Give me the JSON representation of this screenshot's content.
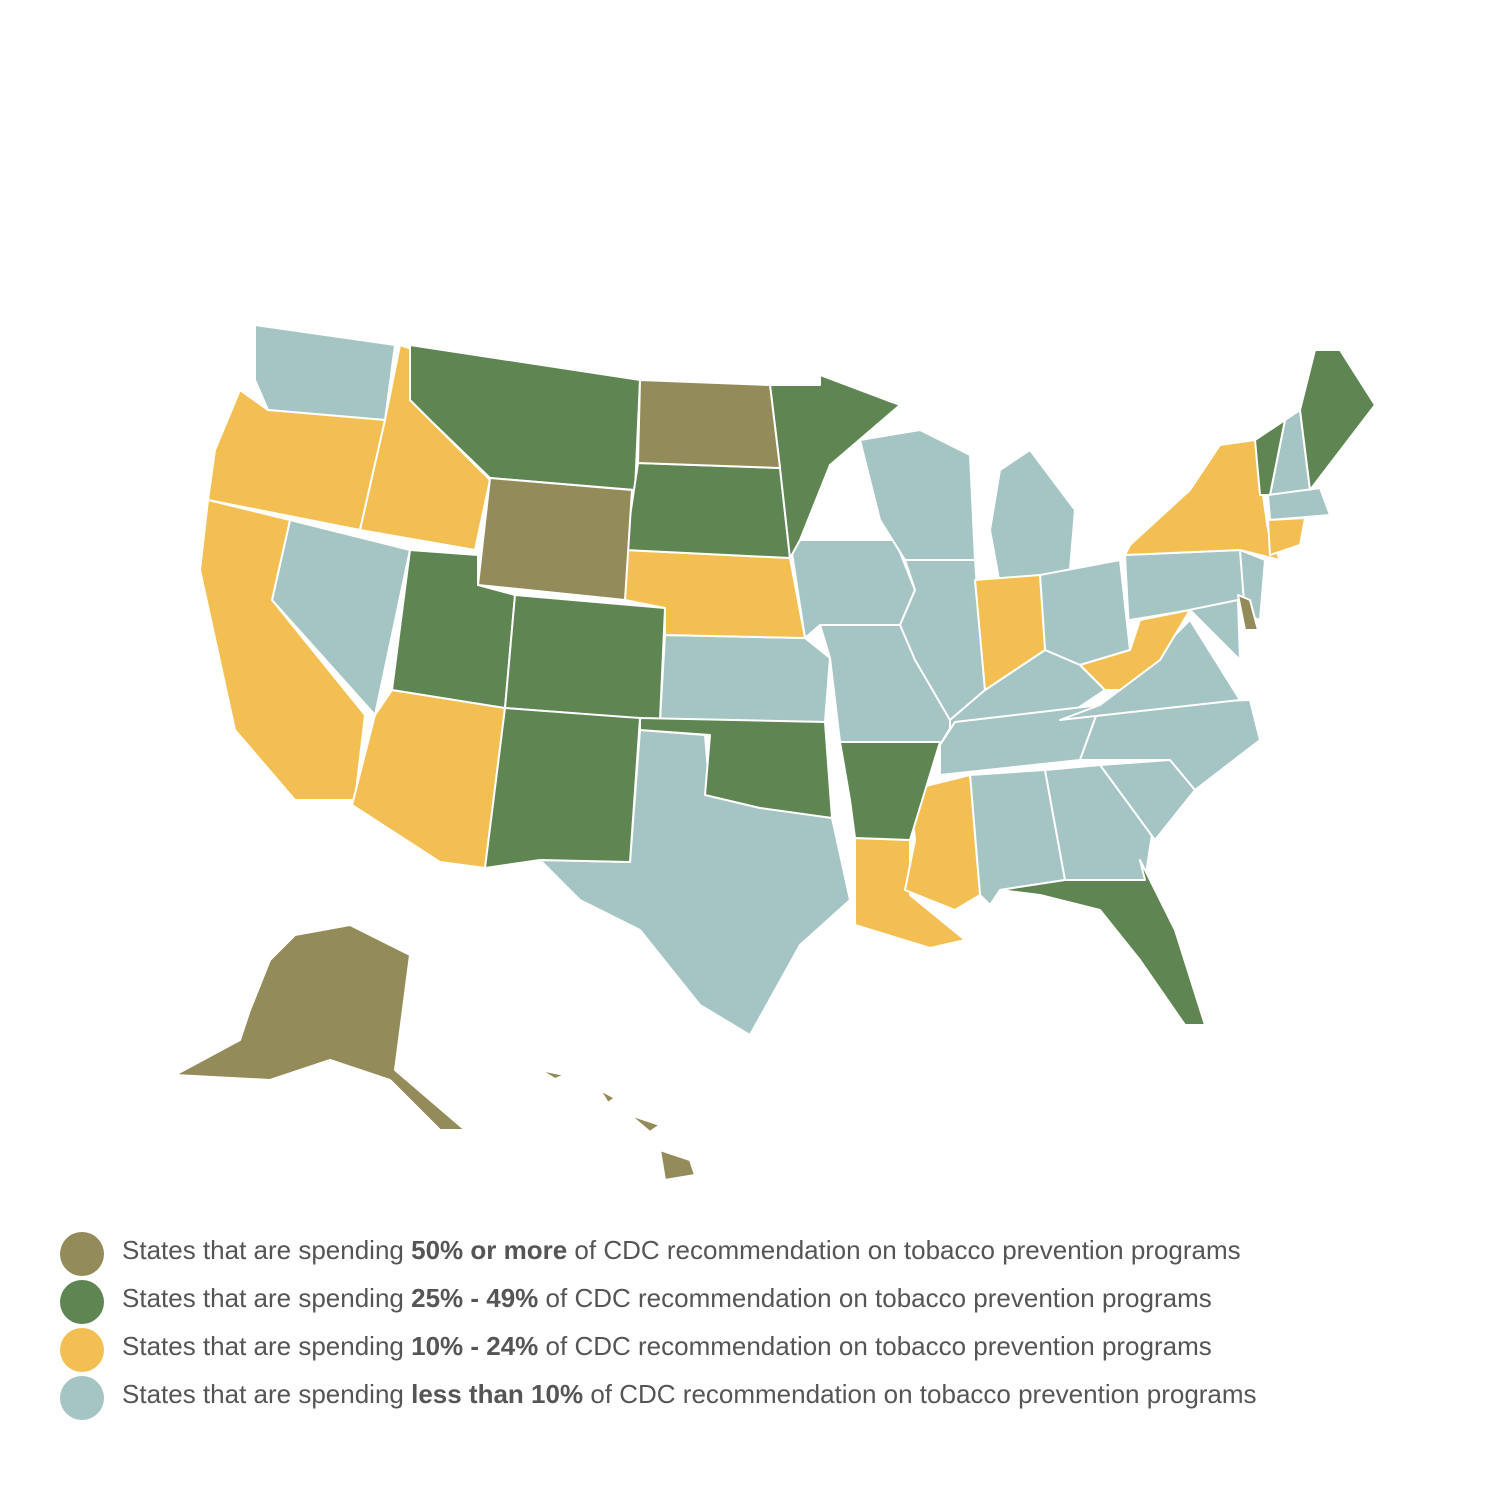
{
  "legend": [
    {
      "color": "#948b5a",
      "text_before": "States that are spending",
      "emphasis": "50% or more",
      "text_after": "of CDC recommendation on tobacco prevention programs"
    },
    {
      "color": "#5e8552",
      "text_before": "States that are spending",
      "emphasis": "25% - 49%",
      "text_after": "of CDC recommendation on tobacco prevention programs"
    },
    {
      "color": "#f3bf52",
      "text_before": "States that are spending",
      "emphasis": "10% - 24%",
      "text_after": "of CDC recommendation on tobacco prevention programs"
    },
    {
      "color": "#a5c4c4",
      "text_before": "States that are spending",
      "emphasis": "less than 10%",
      "text_after": "of CDC recommendation on tobacco prevention programs"
    }
  ]
}
